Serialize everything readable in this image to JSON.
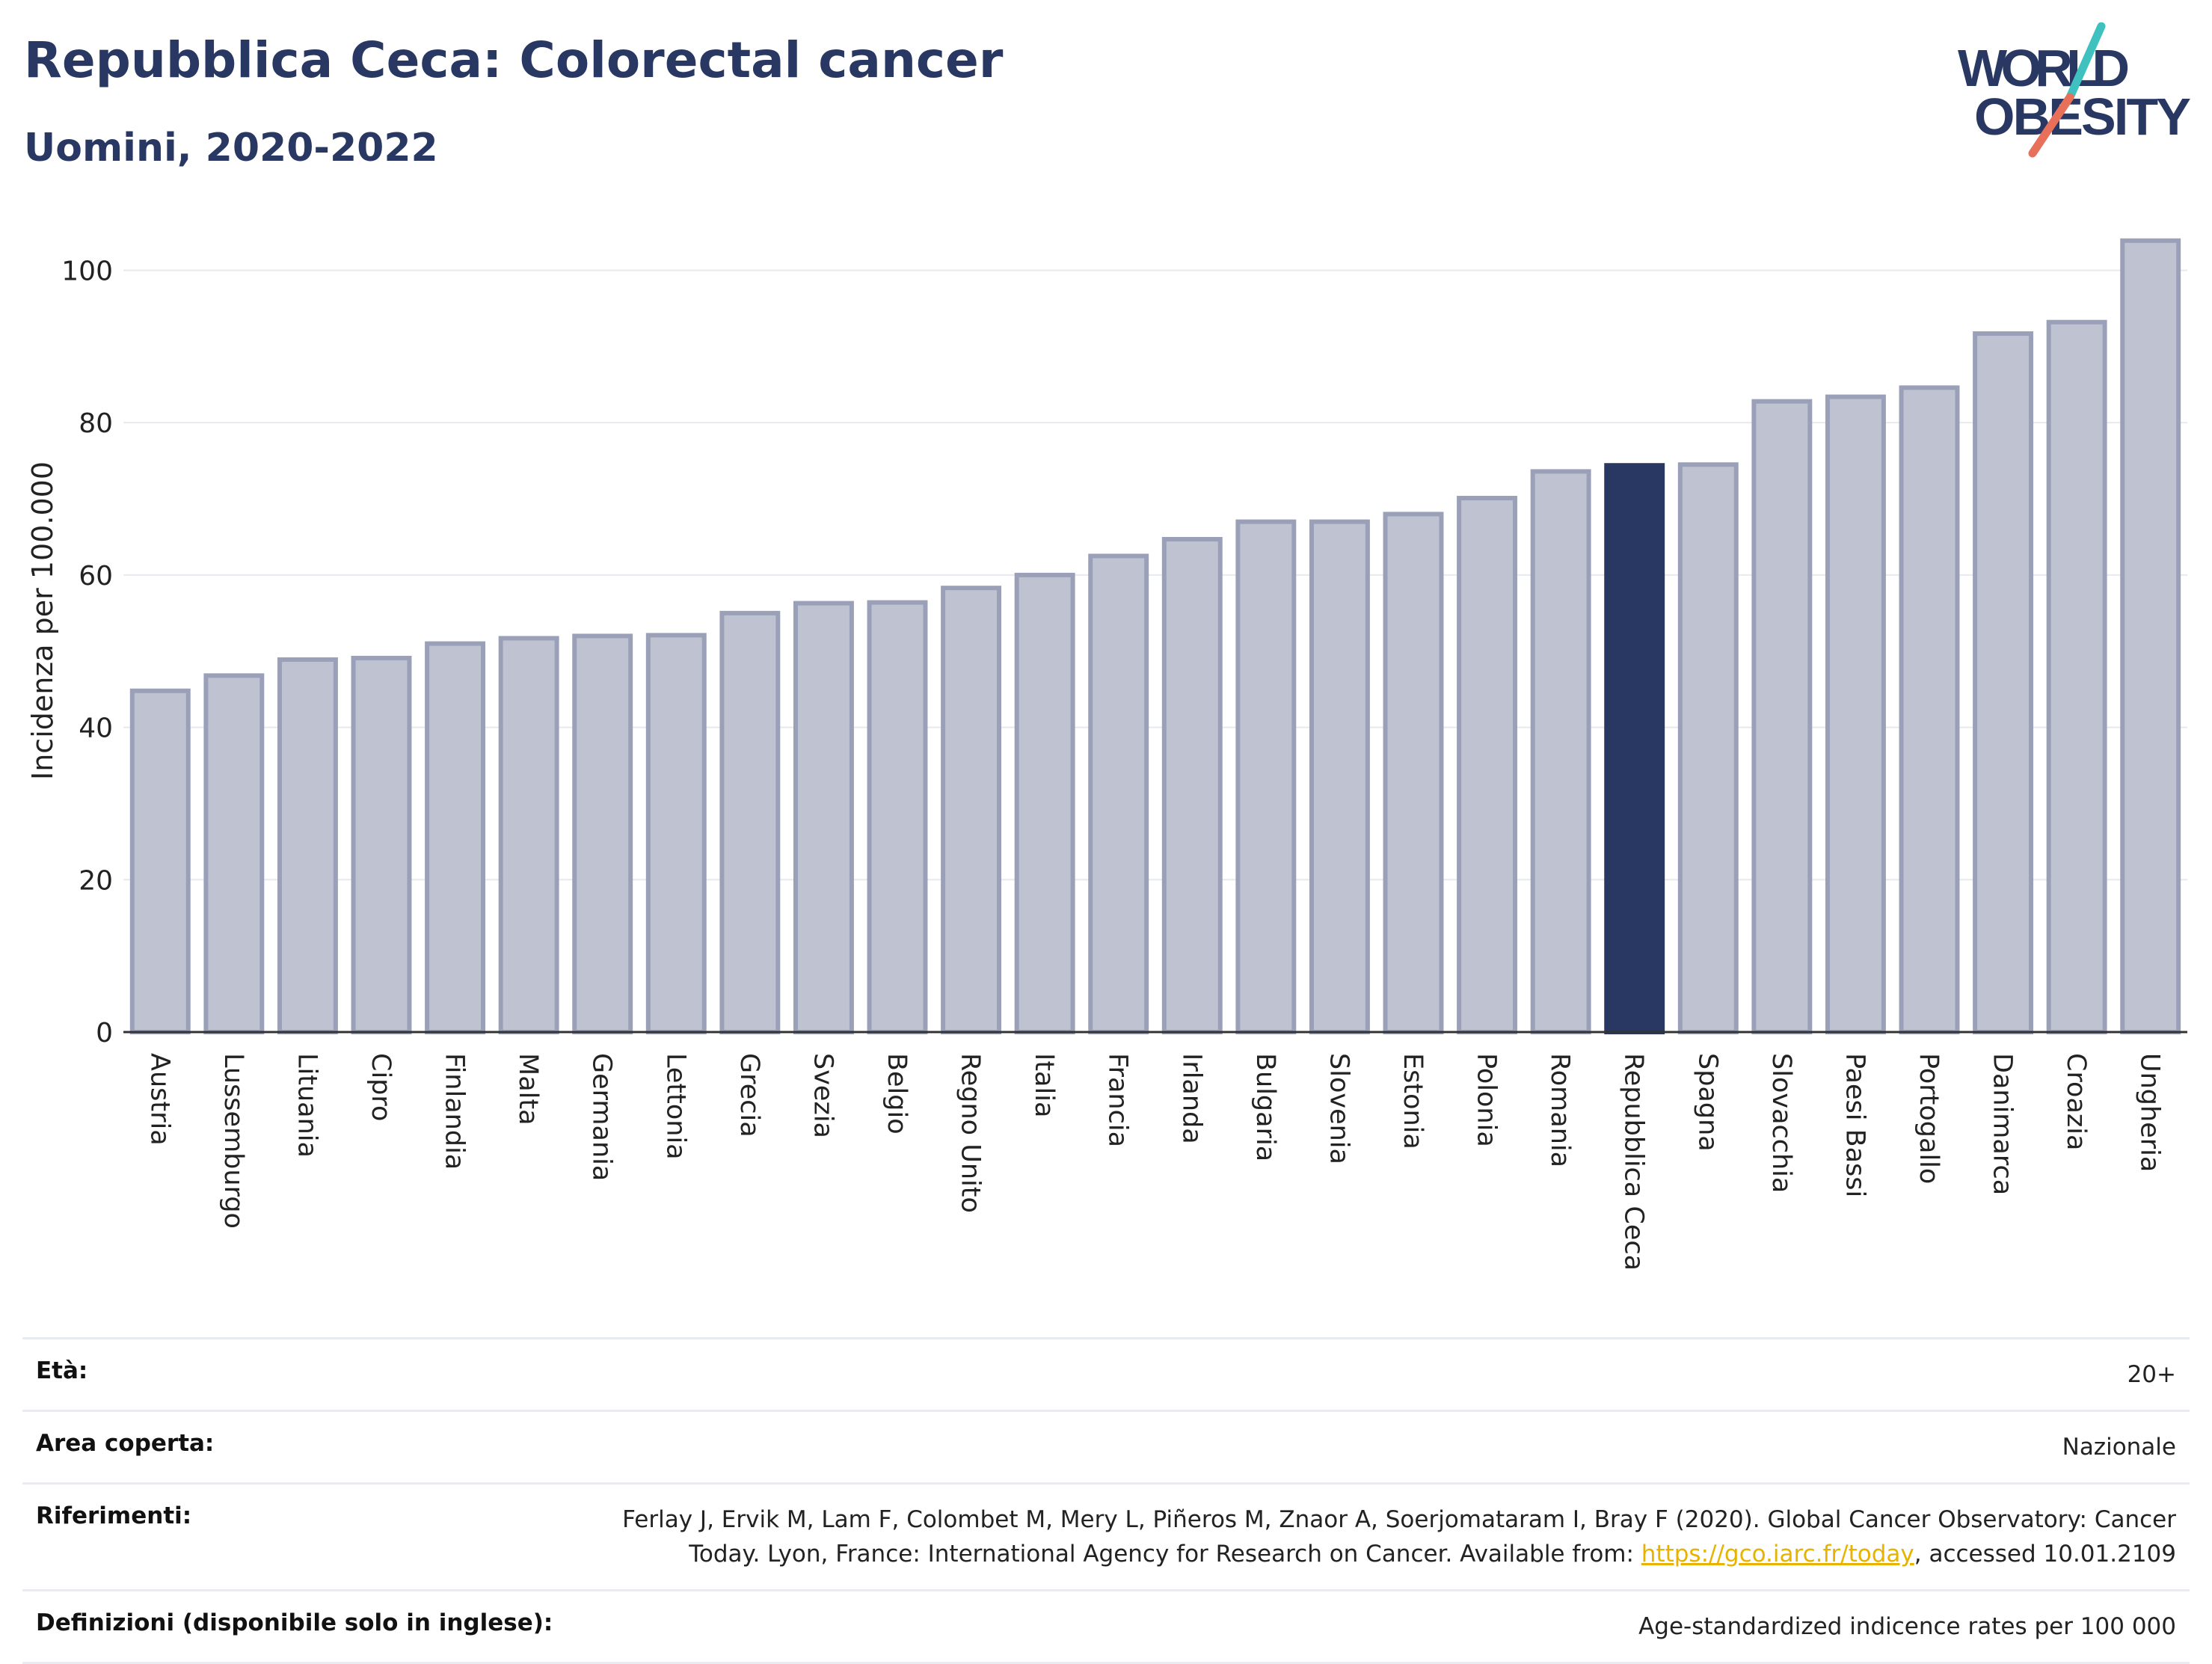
{
  "header": {
    "title": "Repubblica Ceca: Colorectal cancer",
    "subtitle": "Uomini, 2020-2022"
  },
  "logo": {
    "line1": "WORLD",
    "line2": "OBESITY",
    "colors": {
      "teal": "#3fc1c0",
      "coral": "#e8705a",
      "navy": "#283862"
    }
  },
  "chart_data": {
    "type": "bar",
    "ylabel": "Incidenza per 100.000",
    "ylim": [
      0,
      108
    ],
    "yticks": [
      0,
      20,
      40,
      60,
      80,
      100
    ],
    "grid": true,
    "categories": [
      "Austria",
      "Lussemburgo",
      "Lituania",
      "Cipro",
      "Finlandia",
      "Malta",
      "Germania",
      "Lettonia",
      "Grecia",
      "Svezia",
      "Belgio",
      "Regno Unito",
      "Italia",
      "Francia",
      "Irlanda",
      "Bulgaria",
      "Slovenia",
      "Estonia",
      "Polonia",
      "Romania",
      "Repubblica Ceca",
      "Spagna",
      "Slovacchia",
      "Paesi Bassi",
      "Portogallo",
      "Danimarca",
      "Croazia",
      "Ungheria"
    ],
    "values": [
      44.8,
      46.8,
      48.9,
      49.1,
      51.0,
      51.7,
      52.0,
      52.1,
      55.0,
      56.3,
      56.4,
      58.3,
      60.0,
      62.5,
      64.7,
      67.0,
      67.0,
      68.0,
      70.1,
      73.6,
      74.4,
      74.5,
      82.8,
      83.4,
      84.6,
      91.7,
      93.2,
      103.9
    ],
    "highlight": "Repubblica Ceca",
    "colors": {
      "bar": "#bfc3d1",
      "bar_stroke": "#9aa0b8",
      "highlight": "#283862",
      "grid": "#e6e9ee",
      "axis": "#333333"
    }
  },
  "info": {
    "rows": [
      {
        "label": "Età:",
        "value": "20+"
      },
      {
        "label": "Area coperta:",
        "value": "Nazionale"
      },
      {
        "label": "Riferimenti:",
        "value_pre": "Ferlay J, Ervik M, Lam F, Colombet M, Mery L, Piñeros M, Znaor A, Soerjomataram I, Bray F (2020). Global Cancer Observatory: Cancer Today. Lyon, France: International Agency for Research on Cancer. Available from: ",
        "link": "https://gco.iarc.fr/today",
        "value_post": ", accessed 10.01.2109"
      },
      {
        "label": "Definizioni (disponibile solo in inglese):",
        "value": "Age-standardized indicence rates per 100 000"
      }
    ]
  }
}
